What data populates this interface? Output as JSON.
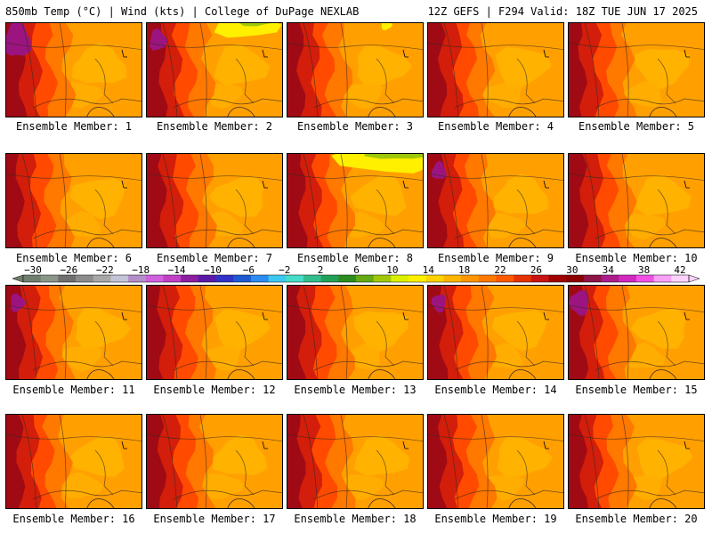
{
  "header": {
    "left": "850mb Temp (°C) | Wind (kts) | College of DuPage NEXLAB",
    "right": "12Z GEFS | F294 Valid: 18Z TUE JUN 17 2025"
  },
  "members": [
    {
      "label": "Ensemble Member: 1",
      "west_warmth": 0.55,
      "north_cool": 0.0,
      "north_hot": 0.8
    },
    {
      "label": "Ensemble Member: 2",
      "west_warmth": 0.55,
      "north_cool": 0.6,
      "north_hot": 0.4
    },
    {
      "label": "Ensemble Member: 3",
      "west_warmth": 0.35,
      "north_cool": 0.1,
      "north_hot": 0.0
    },
    {
      "label": "Ensemble Member: 4",
      "west_warmth": 0.45,
      "north_cool": 0.0,
      "north_hot": 0.0
    },
    {
      "label": "Ensemble Member: 5",
      "west_warmth": 0.4,
      "north_cool": 0.0,
      "north_hot": 0.0
    },
    {
      "label": "Ensemble Member: 6",
      "west_warmth": 0.4,
      "north_cool": 0.0,
      "north_hot": 0.0
    },
    {
      "label": "Ensemble Member: 7",
      "west_warmth": 0.6,
      "north_cool": 0.0,
      "north_hot": 0.0
    },
    {
      "label": "Ensemble Member: 8",
      "west_warmth": 0.5,
      "north_cool": 0.9,
      "north_hot": 0.0
    },
    {
      "label": "Ensemble Member: 9",
      "west_warmth": 0.45,
      "north_cool": 0.0,
      "north_hot": 0.3
    },
    {
      "label": "Ensemble Member: 10",
      "west_warmth": 0.5,
      "north_cool": 0.0,
      "north_hot": 0.0
    },
    {
      "label": "Ensemble Member: 11",
      "west_warmth": 0.5,
      "north_cool": 0.0,
      "north_hot": 0.3
    },
    {
      "label": "Ensemble Member: 12",
      "west_warmth": 0.5,
      "north_cool": 0.0,
      "north_hot": 0.0
    },
    {
      "label": "Ensemble Member: 13",
      "west_warmth": 0.45,
      "north_cool": 0.0,
      "north_hot": 0.0
    },
    {
      "label": "Ensemble Member: 14",
      "west_warmth": 0.5,
      "north_cool": 0.0,
      "north_hot": 0.3
    },
    {
      "label": "Ensemble Member: 15",
      "west_warmth": 0.45,
      "north_cool": 0.0,
      "north_hot": 0.5
    },
    {
      "label": "Ensemble Member: 16",
      "west_warmth": 0.4,
      "north_cool": 0.0,
      "north_hot": 0.0
    },
    {
      "label": "Ensemble Member: 17",
      "west_warmth": 0.5,
      "north_cool": 0.0,
      "north_hot": 0.0
    },
    {
      "label": "Ensemble Member: 18",
      "west_warmth": 0.45,
      "north_cool": 0.0,
      "north_hot": 0.0
    },
    {
      "label": "Ensemble Member: 19",
      "west_warmth": 0.5,
      "north_cool": 0.0,
      "north_hot": 0.0
    },
    {
      "label": "Ensemble Member: 20",
      "west_warmth": 0.45,
      "north_cool": 0.0,
      "north_hot": 0.0
    }
  ],
  "colorbar": {
    "tick_labels": [
      "−30",
      "−26",
      "−22",
      "−18",
      "−14",
      "−10",
      "−6",
      "−2",
      "2",
      "6",
      "10",
      "14",
      "18",
      "22",
      "26",
      "30",
      "34",
      "38",
      "42"
    ],
    "colors": [
      "#6f7f6f",
      "#8a968a",
      "#6f6f6f",
      "#8c8c8c",
      "#a8a8a8",
      "#c4c4d8",
      "#b48ec8",
      "#d060e0",
      "#c040c8",
      "#8c1ea0",
      "#5a1aa8",
      "#3232c8",
      "#1e5ad2",
      "#2c8cf0",
      "#3cc8f0",
      "#46dcc8",
      "#32be8c",
      "#22a05a",
      "#2c8c22",
      "#64aa14",
      "#a0c80a",
      "#dcf000",
      "#fff000",
      "#ffd200",
      "#ffb400",
      "#ff9600",
      "#ff7800",
      "#ff5a00",
      "#e63200",
      "#c81414",
      "#a00000",
      "#8c0000",
      "#8c1446",
      "#aa1e8c",
      "#d228be",
      "#f050e6",
      "#f8a0f8",
      "#fcd2fc"
    ]
  }
}
